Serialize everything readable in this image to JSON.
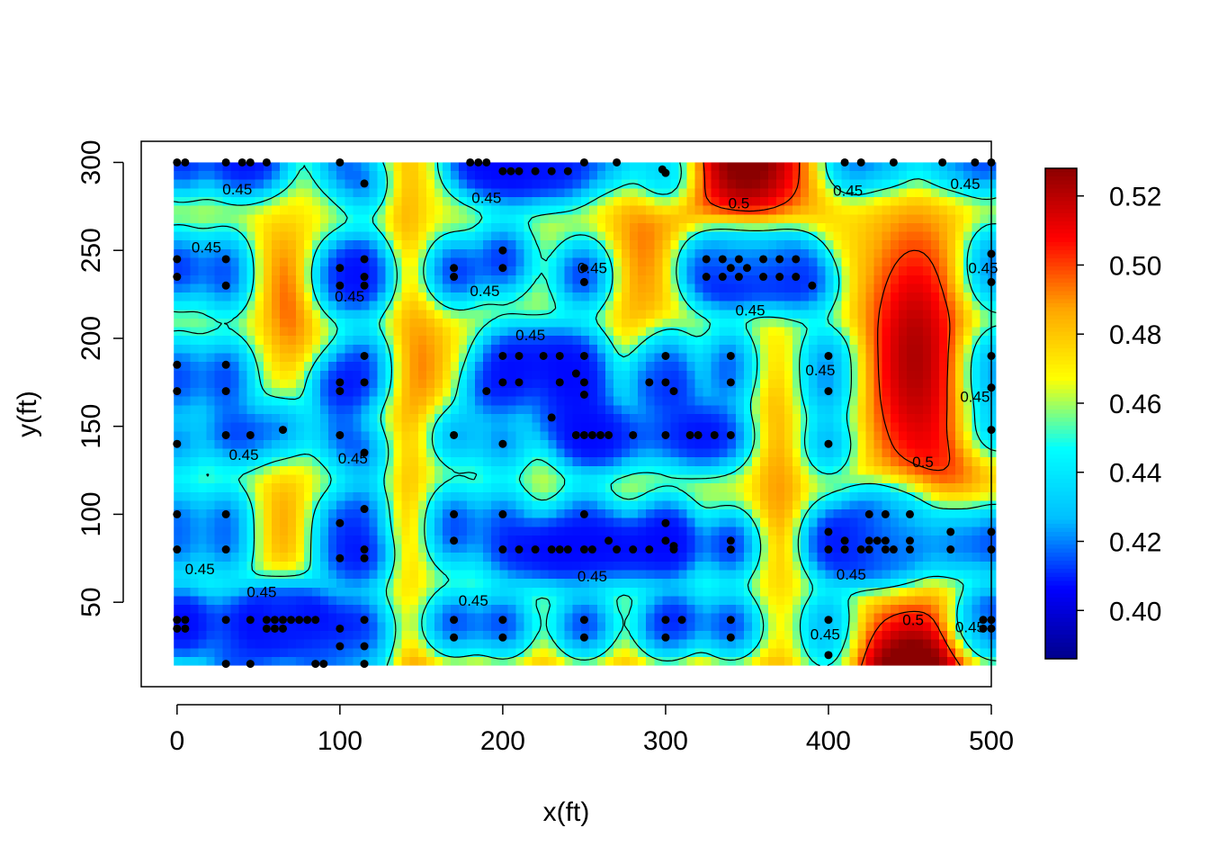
{
  "chart_data": {
    "type": "heatmap",
    "title": "",
    "xlabel": "x(ft)",
    "ylabel": "y(ft)",
    "xlim": [
      -22,
      500
    ],
    "ylim": [
      2,
      312
    ],
    "field_extent": {
      "x": [
        -2,
        503
      ],
      "y": [
        14,
        300
      ]
    },
    "x_ticks": [
      0,
      100,
      200,
      300,
      400,
      500
    ],
    "y_ticks": [
      50,
      100,
      150,
      200,
      250,
      300
    ],
    "x_tick_labels": [
      "0",
      "100",
      "200",
      "300",
      "400",
      "500"
    ],
    "y_tick_labels": [
      "50",
      "100",
      "150",
      "200",
      "250",
      "300"
    ],
    "colorbar": {
      "range": [
        0.386,
        0.528
      ],
      "ticks": [
        0.4,
        0.42,
        0.44,
        0.46,
        0.48,
        0.5,
        0.52
      ],
      "tick_labels": [
        "0.40",
        "0.42",
        "0.44",
        "0.46",
        "0.48",
        "0.50",
        "0.52"
      ]
    },
    "base_value": 0.466,
    "palette": [
      "#00008B",
      "#0000FF",
      "#00BFFF",
      "#00FFFF",
      "#FFFF00",
      "#FFA500",
      "#FF0000",
      "#8B0000"
    ],
    "contour_levels": [
      0.45,
      0.5
    ],
    "contour_labels": [
      {
        "text": "0.45",
        "x": 37,
        "y": 285
      },
      {
        "text": "0.45",
        "x": 18,
        "y": 252
      },
      {
        "text": "0.45",
        "x": 106,
        "y": 224
      },
      {
        "text": "0.45",
        "x": 189,
        "y": 227
      },
      {
        "text": "0.45",
        "x": 190,
        "y": 280
      },
      {
        "text": "0.45",
        "x": 255,
        "y": 240
      },
      {
        "text": "0.45",
        "x": 352,
        "y": 216
      },
      {
        "text": "0.45",
        "x": 412,
        "y": 284
      },
      {
        "text": "0.45",
        "x": 484,
        "y": 288
      },
      {
        "text": "0.45",
        "x": 495,
        "y": 240
      },
      {
        "text": "0.45",
        "x": 217,
        "y": 202
      },
      {
        "text": "0.45",
        "x": 395,
        "y": 182
      },
      {
        "text": "0.45",
        "x": 490,
        "y": 167
      },
      {
        "text": "0.45",
        "x": 41,
        "y": 134
      },
      {
        "text": "0.45",
        "x": 108,
        "y": 132
      },
      {
        "text": "0.45",
        "x": 14,
        "y": 69
      },
      {
        "text": "0.45",
        "x": 52,
        "y": 56
      },
      {
        "text": "0.45",
        "x": 255,
        "y": 65
      },
      {
        "text": "0.45",
        "x": 414,
        "y": 66
      },
      {
        "text": "0.45",
        "x": 182,
        "y": 51
      },
      {
        "text": "0.45",
        "x": 398,
        "y": 32
      },
      {
        "text": "0.45",
        "x": 487,
        "y": 36
      },
      {
        "text": "0.5",
        "x": 345,
        "y": 277
      },
      {
        "text": "0.5",
        "x": 458,
        "y": 130
      },
      {
        "text": "0.5",
        "x": 452,
        "y": 40
      }
    ],
    "high_bumps": [
      {
        "x": 350,
        "y": 300,
        "sx": 30,
        "sy": 30,
        "a": 0.066
      },
      {
        "x": 453,
        "y": 190,
        "sx": 24,
        "sy": 60,
        "a": 0.056
      },
      {
        "x": 452,
        "y": 14,
        "sx": 28,
        "sy": 26,
        "a": 0.064
      },
      {
        "x": 65,
        "y": 240,
        "sx": 14,
        "sy": 22,
        "a": 0.022
      },
      {
        "x": 70,
        "y": 205,
        "sx": 12,
        "sy": 20,
        "a": 0.02
      },
      {
        "x": 65,
        "y": 95,
        "sx": 12,
        "sy": 26,
        "a": 0.02
      },
      {
        "x": 150,
        "y": 185,
        "sx": 14,
        "sy": 30,
        "a": 0.024
      },
      {
        "x": 140,
        "y": 280,
        "sx": 10,
        "sy": 40,
        "a": 0.018
      },
      {
        "x": 140,
        "y": 100,
        "sx": 10,
        "sy": 40,
        "a": 0.016
      },
      {
        "x": 285,
        "y": 250,
        "sx": 16,
        "sy": 45,
        "a": 0.024
      },
      {
        "x": 370,
        "y": 110,
        "sx": 12,
        "sy": 40,
        "a": 0.022
      },
      {
        "x": 360,
        "y": 175,
        "sx": 12,
        "sy": 25,
        "a": 0.012
      },
      {
        "x": 300,
        "y": 10,
        "sx": 120,
        "sy": 12,
        "a": 0.02
      },
      {
        "x": 150,
        "y": 14,
        "sx": 40,
        "sy": 12,
        "a": 0.015
      },
      {
        "x": 485,
        "y": 125,
        "sx": 20,
        "sy": 20,
        "a": 0.015
      }
    ],
    "points": [
      [
        0,
        300
      ],
      [
        5,
        300
      ],
      [
        30,
        300
      ],
      [
        40,
        300
      ],
      [
        45,
        300
      ],
      [
        55,
        300
      ],
      [
        100,
        300
      ],
      [
        115,
        288
      ],
      [
        180,
        300
      ],
      [
        185,
        300
      ],
      [
        190,
        300
      ],
      [
        200,
        295
      ],
      [
        205,
        295
      ],
      [
        210,
        295
      ],
      [
        220,
        295
      ],
      [
        230,
        295
      ],
      [
        240,
        295
      ],
      [
        250,
        300
      ],
      [
        270,
        300
      ],
      [
        298,
        296
      ],
      [
        300,
        294
      ],
      [
        410,
        300
      ],
      [
        420,
        300
      ],
      [
        440,
        300
      ],
      [
        470,
        300
      ],
      [
        490,
        300
      ],
      [
        500,
        300
      ],
      [
        0,
        245
      ],
      [
        0,
        235
      ],
      [
        30,
        245
      ],
      [
        30,
        230
      ],
      [
        100,
        240
      ],
      [
        100,
        230
      ],
      [
        115,
        245
      ],
      [
        115,
        235
      ],
      [
        115,
        230
      ],
      [
        170,
        240
      ],
      [
        170,
        235
      ],
      [
        200,
        250
      ],
      [
        200,
        240
      ],
      [
        250,
        240
      ],
      [
        250,
        232
      ],
      [
        325,
        245
      ],
      [
        325,
        235
      ],
      [
        335,
        245
      ],
      [
        335,
        235
      ],
      [
        340,
        240
      ],
      [
        345,
        245
      ],
      [
        345,
        235
      ],
      [
        350,
        240
      ],
      [
        360,
        245
      ],
      [
        360,
        235
      ],
      [
        370,
        245
      ],
      [
        370,
        235
      ],
      [
        380,
        245
      ],
      [
        380,
        235
      ],
      [
        390,
        230
      ],
      [
        500,
        248
      ],
      [
        500,
        232
      ],
      [
        0,
        185
      ],
      [
        0,
        170
      ],
      [
        30,
        185
      ],
      [
        30,
        170
      ],
      [
        100,
        175
      ],
      [
        100,
        170
      ],
      [
        115,
        190
      ],
      [
        115,
        175
      ],
      [
        190,
        170
      ],
      [
        200,
        190
      ],
      [
        200,
        175
      ],
      [
        210,
        190
      ],
      [
        210,
        175
      ],
      [
        225,
        190
      ],
      [
        235,
        190
      ],
      [
        235,
        175
      ],
      [
        245,
        180
      ],
      [
        250,
        190
      ],
      [
        250,
        175
      ],
      [
        250,
        168
      ],
      [
        290,
        175
      ],
      [
        300,
        190
      ],
      [
        300,
        175
      ],
      [
        305,
        170
      ],
      [
        340,
        190
      ],
      [
        340,
        175
      ],
      [
        400,
        190
      ],
      [
        400,
        170
      ],
      [
        500,
        190
      ],
      [
        500,
        172
      ],
      [
        0,
        140
      ],
      [
        30,
        145
      ],
      [
        45,
        145
      ],
      [
        65,
        148
      ],
      [
        100,
        145
      ],
      [
        115,
        135
      ],
      [
        170,
        145
      ],
      [
        200,
        140
      ],
      [
        230,
        155
      ],
      [
        245,
        145
      ],
      [
        250,
        145
      ],
      [
        255,
        145
      ],
      [
        260,
        145
      ],
      [
        265,
        145
      ],
      [
        280,
        145
      ],
      [
        300,
        145
      ],
      [
        315,
        145
      ],
      [
        320,
        145
      ],
      [
        330,
        145
      ],
      [
        340,
        145
      ],
      [
        400,
        140
      ],
      [
        500,
        148
      ],
      [
        0,
        100
      ],
      [
        0,
        80
      ],
      [
        30,
        100
      ],
      [
        30,
        80
      ],
      [
        100,
        95
      ],
      [
        100,
        75
      ],
      [
        115,
        103
      ],
      [
        115,
        80
      ],
      [
        115,
        75
      ],
      [
        170,
        100
      ],
      [
        170,
        85
      ],
      [
        200,
        100
      ],
      [
        200,
        80
      ],
      [
        210,
        80
      ],
      [
        220,
        80
      ],
      [
        230,
        80
      ],
      [
        235,
        80
      ],
      [
        240,
        80
      ],
      [
        250,
        80
      ],
      [
        255,
        80
      ],
      [
        250,
        100
      ],
      [
        265,
        85
      ],
      [
        270,
        80
      ],
      [
        280,
        80
      ],
      [
        290,
        80
      ],
      [
        300,
        95
      ],
      [
        300,
        85
      ],
      [
        305,
        82
      ],
      [
        305,
        80
      ],
      [
        340,
        85
      ],
      [
        340,
        80
      ],
      [
        400,
        90
      ],
      [
        400,
        80
      ],
      [
        410,
        85
      ],
      [
        410,
        80
      ],
      [
        420,
        80
      ],
      [
        425,
        100
      ],
      [
        425,
        85
      ],
      [
        425,
        80
      ],
      [
        430,
        85
      ],
      [
        435,
        100
      ],
      [
        435,
        85
      ],
      [
        435,
        80
      ],
      [
        440,
        80
      ],
      [
        450,
        100
      ],
      [
        450,
        85
      ],
      [
        450,
        80
      ],
      [
        475,
        90
      ],
      [
        475,
        80
      ],
      [
        500,
        90
      ],
      [
        500,
        80
      ],
      [
        0,
        40
      ],
      [
        0,
        35
      ],
      [
        5,
        40
      ],
      [
        5,
        35
      ],
      [
        30,
        40
      ],
      [
        30,
        15
      ],
      [
        45,
        40
      ],
      [
        45,
        15
      ],
      [
        55,
        40
      ],
      [
        55,
        35
      ],
      [
        60,
        40
      ],
      [
        60,
        35
      ],
      [
        65,
        40
      ],
      [
        65,
        35
      ],
      [
        70,
        40
      ],
      [
        75,
        40
      ],
      [
        80,
        40
      ],
      [
        85,
        40
      ],
      [
        85,
        15
      ],
      [
        90,
        15
      ],
      [
        100,
        35
      ],
      [
        100,
        25
      ],
      [
        115,
        40
      ],
      [
        115,
        25
      ],
      [
        115,
        15
      ],
      [
        170,
        40
      ],
      [
        170,
        30
      ],
      [
        200,
        40
      ],
      [
        200,
        30
      ],
      [
        250,
        40
      ],
      [
        250,
        30
      ],
      [
        300,
        40
      ],
      [
        300,
        30
      ],
      [
        310,
        40
      ],
      [
        340,
        40
      ],
      [
        340,
        30
      ],
      [
        400,
        40
      ],
      [
        400,
        20
      ],
      [
        495,
        40
      ],
      [
        495,
        35
      ],
      [
        500,
        40
      ],
      [
        500,
        35
      ]
    ]
  }
}
